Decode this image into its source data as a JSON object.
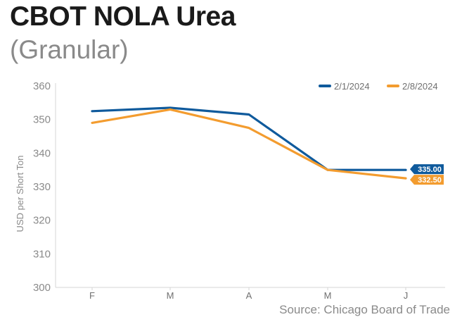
{
  "header": {
    "title": "CBOT NOLA Urea",
    "subtitle": "(Granular)"
  },
  "footer": {
    "source": "Source: Chicago Board of Trade"
  },
  "chart_data": {
    "type": "line",
    "categories": [
      "F",
      "M",
      "A",
      "M",
      "J"
    ],
    "series": [
      {
        "name": "2/1/2024",
        "color": "#0f5a9c",
        "values": [
          352.5,
          353.5,
          351.5,
          335,
          335
        ],
        "end_label": "335.00"
      },
      {
        "name": "2/8/2024",
        "color": "#f39c2f",
        "values": [
          349,
          353,
          347.5,
          335,
          332.5
        ],
        "end_label": "332.50"
      }
    ],
    "ylabel": "USD per Short Ton",
    "xlabel": "",
    "ylim": [
      300,
      360
    ],
    "yticks": [
      300,
      310,
      320,
      330,
      340,
      350,
      360
    ],
    "grid": false,
    "legend_position": "top-right"
  }
}
